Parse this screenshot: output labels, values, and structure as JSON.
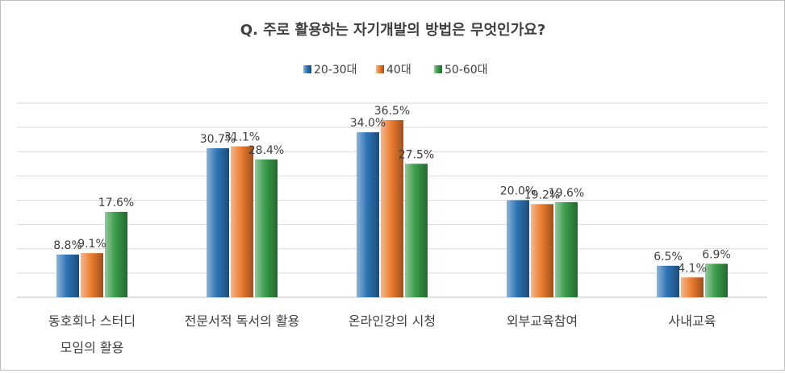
{
  "chart_data": {
    "type": "bar",
    "title": "Q. 주로 활용하는 자기개발의 방법은 무엇인가요?",
    "categories": [
      [
        "동호회나 스터디",
        "모임의 활용"
      ],
      [
        "전문서적 독서의 활용"
      ],
      [
        "온라인강의 시청"
      ],
      [
        "외부교육참여"
      ],
      [
        "사내교육"
      ]
    ],
    "series": [
      {
        "name": "20-30대",
        "values": [
          8.8,
          30.7,
          34.0,
          20.0,
          6.5
        ],
        "labels": [
          "8.8%",
          "30.7%",
          "34.0%",
          "20.0%",
          "6.5%"
        ]
      },
      {
        "name": "40대",
        "values": [
          9.1,
          31.1,
          36.5,
          19.2,
          4.1
        ],
        "labels": [
          "9.1%",
          "31.1%",
          "36.5%",
          "19.2%",
          "4.1%"
        ]
      },
      {
        "name": "50-60대",
        "values": [
          17.6,
          28.4,
          27.5,
          19.6,
          6.9
        ],
        "labels": [
          "17.6%",
          "28.4%",
          "27.5%",
          "19.6%",
          "6.9%"
        ]
      }
    ],
    "colors": [
      "#2e75b6",
      "#ed7d31",
      "#3a9d4a"
    ],
    "ylim": [
      0,
      40
    ],
    "grid": true,
    "legend_position": "top"
  }
}
